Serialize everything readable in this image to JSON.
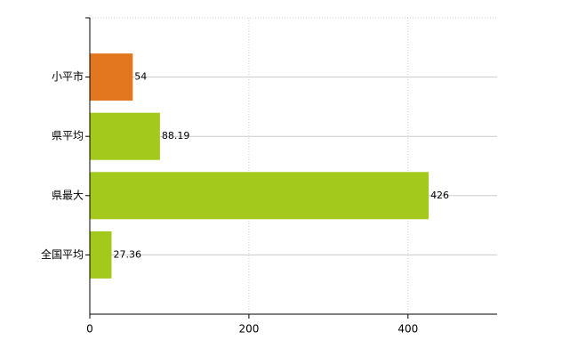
{
  "chart_data": {
    "type": "bar",
    "orientation": "horizontal",
    "categories": [
      "小平市",
      "県平均",
      "県最大",
      "全国平均"
    ],
    "values": [
      54,
      88.19,
      426,
      27.36
    ],
    "colors": [
      "#e2771f",
      "#a4c91d",
      "#a4c91d",
      "#a4c91d"
    ],
    "xlim": [
      0,
      512
    ],
    "xticks": [
      0,
      200,
      400
    ],
    "grid": true
  }
}
